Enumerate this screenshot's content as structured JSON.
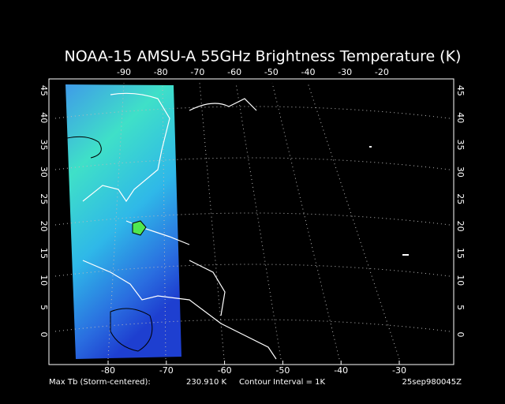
{
  "title": "NOAA-15 AMSU-A 55GHz Brightness Temperature (K)",
  "top_ticks": [
    -90,
    -80,
    -70,
    -60,
    -50,
    -40,
    -30,
    -20
  ],
  "bottom_ticks": [
    -80,
    -70,
    -60,
    -50,
    -40,
    -30
  ],
  "left_ticks": [
    0,
    5,
    10,
    15,
    20,
    25,
    30,
    35,
    40,
    45
  ],
  "right_ticks": [
    0,
    5,
    10,
    15,
    20,
    25,
    30,
    35,
    40,
    45
  ],
  "footer": {
    "max_label": "Max Tb (Storm-centered):",
    "max_value": "230.910 K",
    "contour": "Contour Interval = 1K",
    "timestamp": "25sep980045Z"
  }
}
